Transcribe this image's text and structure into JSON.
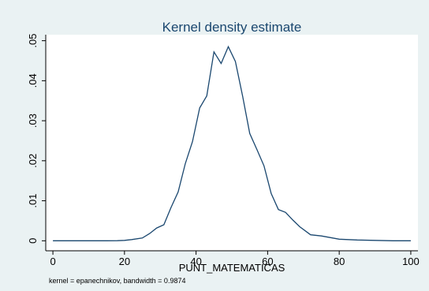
{
  "chart_data": {
    "type": "line",
    "title": "Kernel density estimate",
    "xlabel": "PUNT_MATEMATICAS",
    "ylabel": "",
    "note": "kernel = epanechnikov, bandwidth = 0.9874",
    "xlim": [
      -2,
      102
    ],
    "ylim": [
      -0.0025,
      0.0515
    ],
    "xticks": [
      0,
      20,
      40,
      60,
      80,
      100
    ],
    "xtick_labels": [
      "0",
      "20",
      "40",
      "60",
      "80",
      "100"
    ],
    "yticks": [
      0,
      0.01,
      0.02,
      0.03,
      0.04,
      0.05
    ],
    "ytick_labels": [
      "0",
      ".01",
      ".02",
      ".03",
      ".04",
      ".05"
    ],
    "grid": false,
    "legend": "none",
    "line_color": "#1a476f",
    "plot_background": "#ffffff",
    "graph_background": "#eaf2f3",
    "series": [
      {
        "x": [
          0,
          10,
          15,
          18,
          20,
          22,
          25,
          27,
          29,
          31,
          33,
          35,
          37,
          39,
          41,
          43,
          45,
          47,
          49,
          51,
          53,
          55,
          57,
          59,
          61,
          63,
          65,
          67,
          69,
          72,
          75,
          80,
          85,
          90,
          95,
          100
        ],
        "values": [
          0,
          0,
          0,
          3e-05,
          0.0001,
          0.0003,
          0.0007,
          0.0018,
          0.0032,
          0.004,
          0.0083,
          0.0122,
          0.0193,
          0.0248,
          0.0332,
          0.0362,
          0.0472,
          0.0443,
          0.0485,
          0.0448,
          0.0362,
          0.0268,
          0.0228,
          0.0187,
          0.0118,
          0.0078,
          0.0071,
          0.0052,
          0.0035,
          0.0015,
          0.0012,
          0.0004,
          0.0002,
          0.0001,
          0,
          0
        ]
      }
    ]
  }
}
